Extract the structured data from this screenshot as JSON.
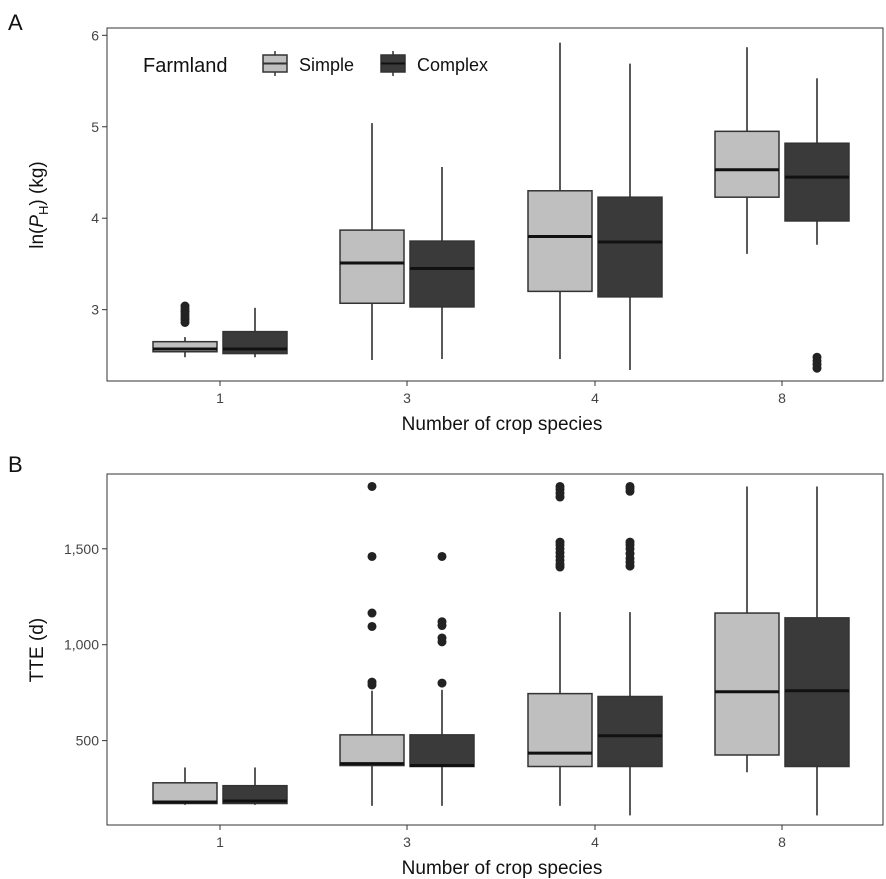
{
  "legend": {
    "title": "Farmland",
    "items": [
      {
        "label": "Simple",
        "color": "#bfbfbf"
      },
      {
        "label": "Complex",
        "color": "#3a3a3a"
      }
    ]
  },
  "chart_data": [
    {
      "panel": "A",
      "type": "box",
      "xlabel": "Number of crop species",
      "ylabel_parts": [
        "ln(",
        "P",
        "H",
        ") (kg)"
      ],
      "categories": [
        "1",
        "3",
        "4",
        "8"
      ],
      "ylim": [
        2.22,
        6.08
      ],
      "yticks": [
        {
          "value": 3,
          "label": "3"
        },
        {
          "value": 4,
          "label": "4"
        },
        {
          "value": 5,
          "label": "5"
        },
        {
          "value": 6,
          "label": "6"
        }
      ],
      "grid": false,
      "legend_position": "top-left",
      "series": [
        {
          "name": "Simple",
          "color": "#bfbfbf",
          "boxes": [
            {
              "min": 2.48,
              "q1": 2.54,
              "median": 2.57,
              "q3": 2.65,
              "max": 2.7,
              "outliers": [
                2.86,
                2.89,
                2.92,
                2.95,
                2.98,
                3.01,
                3.04
              ]
            },
            {
              "min": 2.45,
              "q1": 3.07,
              "median": 3.51,
              "q3": 3.87,
              "max": 5.04,
              "outliers": []
            },
            {
              "min": 2.46,
              "q1": 3.2,
              "median": 3.8,
              "q3": 4.3,
              "max": 5.92,
              "outliers": []
            },
            {
              "min": 3.61,
              "q1": 4.23,
              "median": 4.53,
              "q3": 4.95,
              "max": 5.87,
              "outliers": []
            }
          ]
        },
        {
          "name": "Complex",
          "color": "#3a3a3a",
          "boxes": [
            {
              "min": 2.48,
              "q1": 2.52,
              "median": 2.57,
              "q3": 2.76,
              "max": 3.02,
              "outliers": []
            },
            {
              "min": 2.46,
              "q1": 3.03,
              "median": 3.45,
              "q3": 3.75,
              "max": 4.56,
              "outliers": []
            },
            {
              "min": 2.34,
              "q1": 3.14,
              "median": 3.74,
              "q3": 4.23,
              "max": 5.69,
              "outliers": []
            },
            {
              "min": 3.71,
              "q1": 3.97,
              "median": 4.45,
              "q3": 4.82,
              "max": 5.53,
              "outliers": [
                2.36,
                2.4,
                2.44,
                2.48
              ]
            }
          ]
        }
      ]
    },
    {
      "panel": "B",
      "type": "box",
      "xlabel": "Number of crop species",
      "ylabel": "TTE (d)",
      "categories": [
        "1",
        "3",
        "4",
        "8"
      ],
      "ylim": [
        60,
        1890
      ],
      "yticks": [
        {
          "value": 500,
          "label": "500"
        },
        {
          "value": 1000,
          "label": "1,000"
        },
        {
          "value": 1500,
          "label": "1,500"
        }
      ],
      "grid": false,
      "series": [
        {
          "name": "Simple",
          "color": "#bfbfbf",
          "boxes": [
            {
              "min": 165,
              "q1": 172,
              "median": 180,
              "q3": 280,
              "max": 360,
              "outliers": []
            },
            {
              "min": 160,
              "q1": 370,
              "median": 380,
              "q3": 530,
              "max": 760,
              "outliers": [
                790,
                805,
                1095,
                1165,
                1460,
                1825
              ]
            },
            {
              "min": 160,
              "q1": 365,
              "median": 435,
              "q3": 745,
              "max": 1170,
              "outliers": [
                1405,
                1420,
                1440,
                1460,
                1480,
                1500,
                1520,
                1535,
                1770,
                1790,
                1810,
                1825
              ]
            },
            {
              "min": 335,
              "q1": 425,
              "median": 755,
              "q3": 1165,
              "max": 1825,
              "outliers": []
            }
          ]
        },
        {
          "name": "Complex",
          "color": "#3a3a3a",
          "boxes": [
            {
              "min": 165,
              "q1": 172,
              "median": 185,
              "q3": 265,
              "max": 360,
              "outliers": []
            },
            {
              "min": 160,
              "q1": 365,
              "median": 370,
              "q3": 530,
              "max": 765,
              "outliers": [
                800,
                1015,
                1035,
                1100,
                1120,
                1460
              ]
            },
            {
              "min": 110,
              "q1": 365,
              "median": 525,
              "q3": 730,
              "max": 1170,
              "outliers": [
                1410,
                1430,
                1450,
                1475,
                1500,
                1520,
                1535,
                1800,
                1815,
                1825
              ]
            },
            {
              "min": 110,
              "q1": 365,
              "median": 760,
              "q3": 1140,
              "max": 1825,
              "outliers": []
            }
          ]
        }
      ]
    }
  ]
}
